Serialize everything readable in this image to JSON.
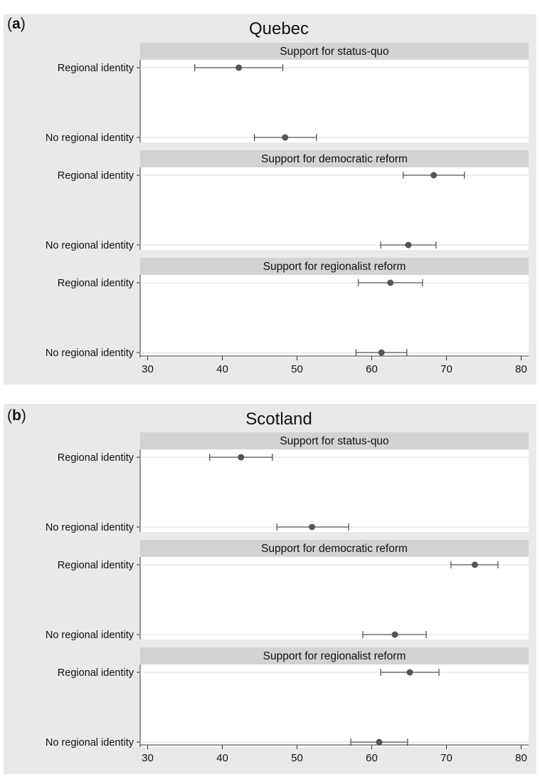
{
  "figure": {
    "background": "#e9e9e9",
    "strip_color": "#d3d3d3",
    "marker_color": "#555555"
  },
  "chart_data": [
    {
      "type": "scatter",
      "panel_label": "a",
      "title": "Quebec",
      "xlim": [
        29,
        81
      ],
      "xticks": [
        30,
        40,
        50,
        60,
        70,
        80
      ],
      "xlabel": "",
      "ylabel": "",
      "grid": true,
      "facets": [
        {
          "label": "Support for status-quo",
          "categories": [
            "Regional identity",
            "No regional identity"
          ],
          "estimates": [
            42.2,
            48.4
          ],
          "ci_low": [
            36.3,
            44.3
          ],
          "ci_high": [
            48.1,
            52.6
          ]
        },
        {
          "label": "Support for democratic reform",
          "categories": [
            "Regional identity",
            "No regional identity"
          ],
          "estimates": [
            68.3,
            64.9
          ],
          "ci_low": [
            64.2,
            61.2
          ],
          "ci_high": [
            72.4,
            68.6
          ]
        },
        {
          "label": "Support for regionalist reform",
          "categories": [
            "Regional identity",
            "No regional identity"
          ],
          "estimates": [
            62.5,
            61.3
          ],
          "ci_low": [
            58.2,
            57.9
          ],
          "ci_high": [
            66.8,
            64.7
          ]
        }
      ]
    },
    {
      "type": "scatter",
      "panel_label": "b",
      "title": "Scotland",
      "xlim": [
        29,
        81
      ],
      "xticks": [
        30,
        40,
        50,
        60,
        70,
        80
      ],
      "xlabel": "",
      "ylabel": "",
      "grid": true,
      "facets": [
        {
          "label": "Support for status-quo",
          "categories": [
            "Regional identity",
            "No regional identity"
          ],
          "estimates": [
            42.5,
            52.0
          ],
          "ci_low": [
            38.3,
            47.3
          ],
          "ci_high": [
            46.7,
            56.9
          ]
        },
        {
          "label": "Support for democratic reform",
          "categories": [
            "Regional identity",
            "No regional identity"
          ],
          "estimates": [
            73.8,
            63.1
          ],
          "ci_low": [
            70.6,
            58.8
          ],
          "ci_high": [
            76.9,
            67.3
          ]
        },
        {
          "label": "Support for regionalist reform",
          "categories": [
            "Regional identity",
            "No regional identity"
          ],
          "estimates": [
            65.1,
            61.0
          ],
          "ci_low": [
            61.2,
            57.2
          ],
          "ci_high": [
            69.0,
            64.8
          ]
        }
      ]
    }
  ]
}
